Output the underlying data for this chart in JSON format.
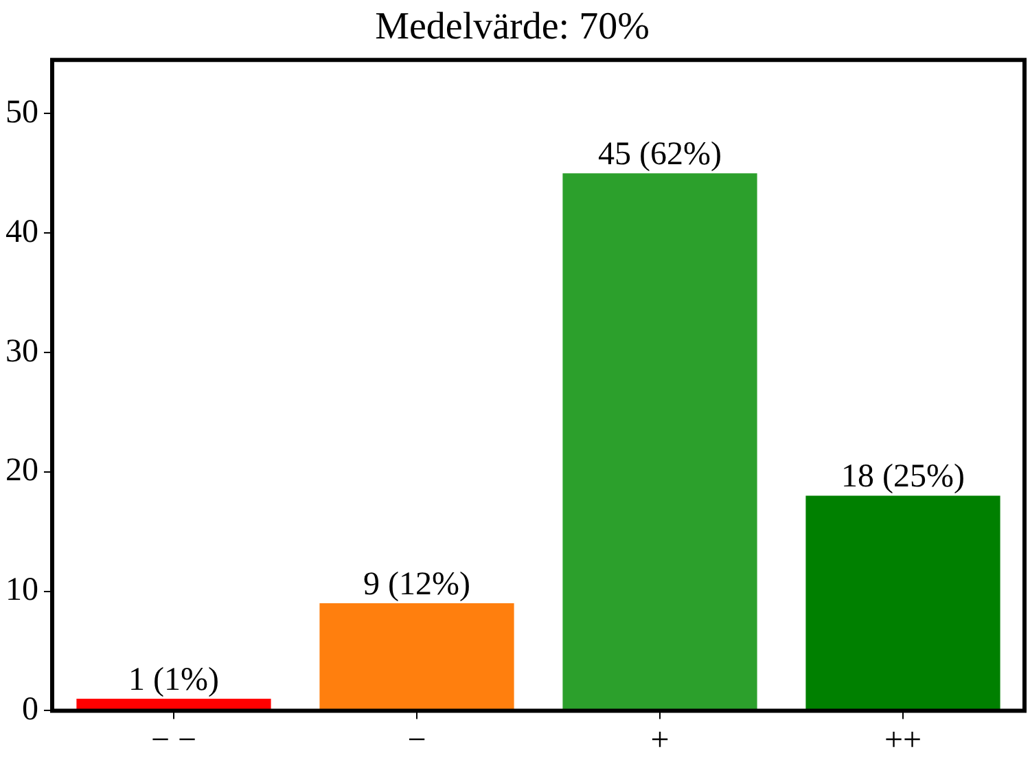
{
  "chart_data": {
    "type": "bar",
    "title": "Medelvärde: 70%",
    "categories": [
      "− −",
      "−",
      "+",
      "++"
    ],
    "values": [
      1,
      9,
      45,
      18
    ],
    "colors": [
      "#ff0000",
      "#ff7f0e",
      "#2ca02c",
      "#008000"
    ],
    "value_labels": [
      "1 (1%)",
      "9 (12%)",
      "45 (62%)",
      "18 (25%)"
    ],
    "ylim": [
      0,
      54.5
    ],
    "yticks": [
      0,
      10,
      20,
      30,
      40,
      50
    ],
    "grid": false,
    "legend": false
  }
}
